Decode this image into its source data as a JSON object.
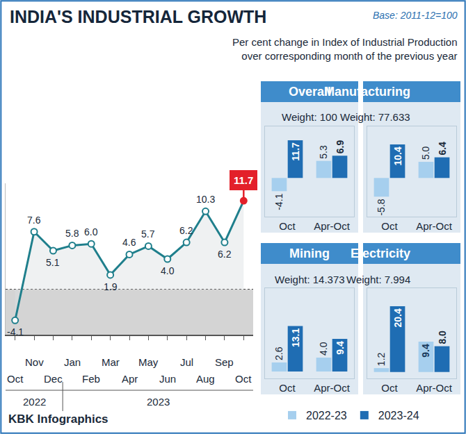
{
  "chart_data": [
    {
      "type": "line",
      "title": "INDIA'S INDUSTRIAL GROWTH",
      "note": "Base: 2011-12=100",
      "subtitle": [
        "Per cent change in Index of Industrial Production",
        "over corresponding month of the previous year"
      ],
      "source": "KBK Infographics",
      "categories": [
        "Oct",
        "Nov",
        "Dec",
        "Jan",
        "Feb",
        "Mar",
        "Apr",
        "May",
        "Jun",
        "Jul",
        "Aug",
        "Sep",
        "Oct"
      ],
      "x_groups": [
        {
          "label": "2022",
          "count": 3
        },
        {
          "label": "2023",
          "count": 10
        }
      ],
      "values": [
        -4.1,
        7.6,
        5.1,
        5.8,
        6.0,
        1.9,
        4.6,
        5.7,
        4.0,
        6.2,
        10.3,
        6.2,
        11.7
      ],
      "value_labels": [
        "-4.1",
        "7.6",
        "5.1",
        "5.8",
        "6.0",
        "1.9",
        "4.6",
        "5.7",
        "4.0",
        "6.2",
        "10.3",
        "6.2",
        "11.7"
      ],
      "color": "#1f7f8c",
      "marker": "circle",
      "line_style": "solid",
      "ylim": [
        -6,
        14
      ],
      "yticks": [
        0
      ],
      "grid": true,
      "tick_labels": "x",
      "data_labels": true
    },
    {
      "type": "bar",
      "title": "Overall",
      "subtitle": "Weight: 100",
      "categories": [
        "Oct",
        "Apr-Oct"
      ],
      "series": [
        {
          "name": "2022-23",
          "color": "#a6cfee",
          "values": [
            -4.1,
            5.3
          ],
          "value_labels": [
            "-4.1",
            "5.3"
          ]
        },
        {
          "name": "2023-24",
          "color": "#1f6db3",
          "values": [
            11.7,
            6.9
          ],
          "value_labels": [
            "11.7",
            "6.9"
          ]
        }
      ],
      "ylim": [
        -12,
        16
      ],
      "yticks": [],
      "grid": false,
      "tick_labels": "x",
      "data_labels": true,
      "legend": "bottom right"
    },
    {
      "type": "bar",
      "title": "Manufacturing",
      "subtitle": "Weight: 77.633",
      "categories": [
        "Oct",
        "Apr-Oct"
      ],
      "series": [
        {
          "name": "2022-23",
          "color": "#a6cfee",
          "values": [
            -5.8,
            5.0
          ],
          "value_labels": [
            "-5.8",
            "5.0"
          ]
        },
        {
          "name": "2023-24",
          "color": "#1f6db3",
          "values": [
            10.4,
            6.4
          ],
          "value_labels": [
            "10.4",
            "6.4"
          ]
        }
      ],
      "ylim": [
        -12,
        16
      ],
      "yticks": [],
      "grid": false,
      "tick_labels": "x",
      "data_labels": true
    },
    {
      "type": "bar",
      "title": "Mining",
      "subtitle": "Weight: 14.373",
      "categories": [
        "Oct",
        "Apr-Oct"
      ],
      "series": [
        {
          "name": "2022-23",
          "color": "#a6cfee",
          "values": [
            2.6,
            4.0
          ],
          "value_labels": [
            "2.6",
            "4.0"
          ]
        },
        {
          "name": "2023-24",
          "color": "#1f6db3",
          "values": [
            13.1,
            9.4
          ],
          "value_labels": [
            "13.1",
            "9.4"
          ]
        }
      ],
      "ylim": [
        -2,
        24
      ],
      "yticks": [],
      "grid": false,
      "tick_labels": "x",
      "data_labels": true
    },
    {
      "type": "bar",
      "title": "Electricity",
      "subtitle": "Weight: 7.994",
      "categories": [
        "Oct",
        "Apr-Oct"
      ],
      "series": [
        {
          "name": "2022-23",
          "color": "#a6cfee",
          "values": [
            1.2,
            9.4
          ],
          "value_labels": [
            "1.2",
            "9.4"
          ]
        },
        {
          "name": "2023-24",
          "color": "#1f6db3",
          "values": [
            20.4,
            8.0
          ],
          "value_labels": [
            "20.4",
            "8.0"
          ]
        }
      ],
      "ylim": [
        -2,
        26
      ],
      "yticks": [],
      "grid": false,
      "tick_labels": "x",
      "data_labels": true
    }
  ]
}
